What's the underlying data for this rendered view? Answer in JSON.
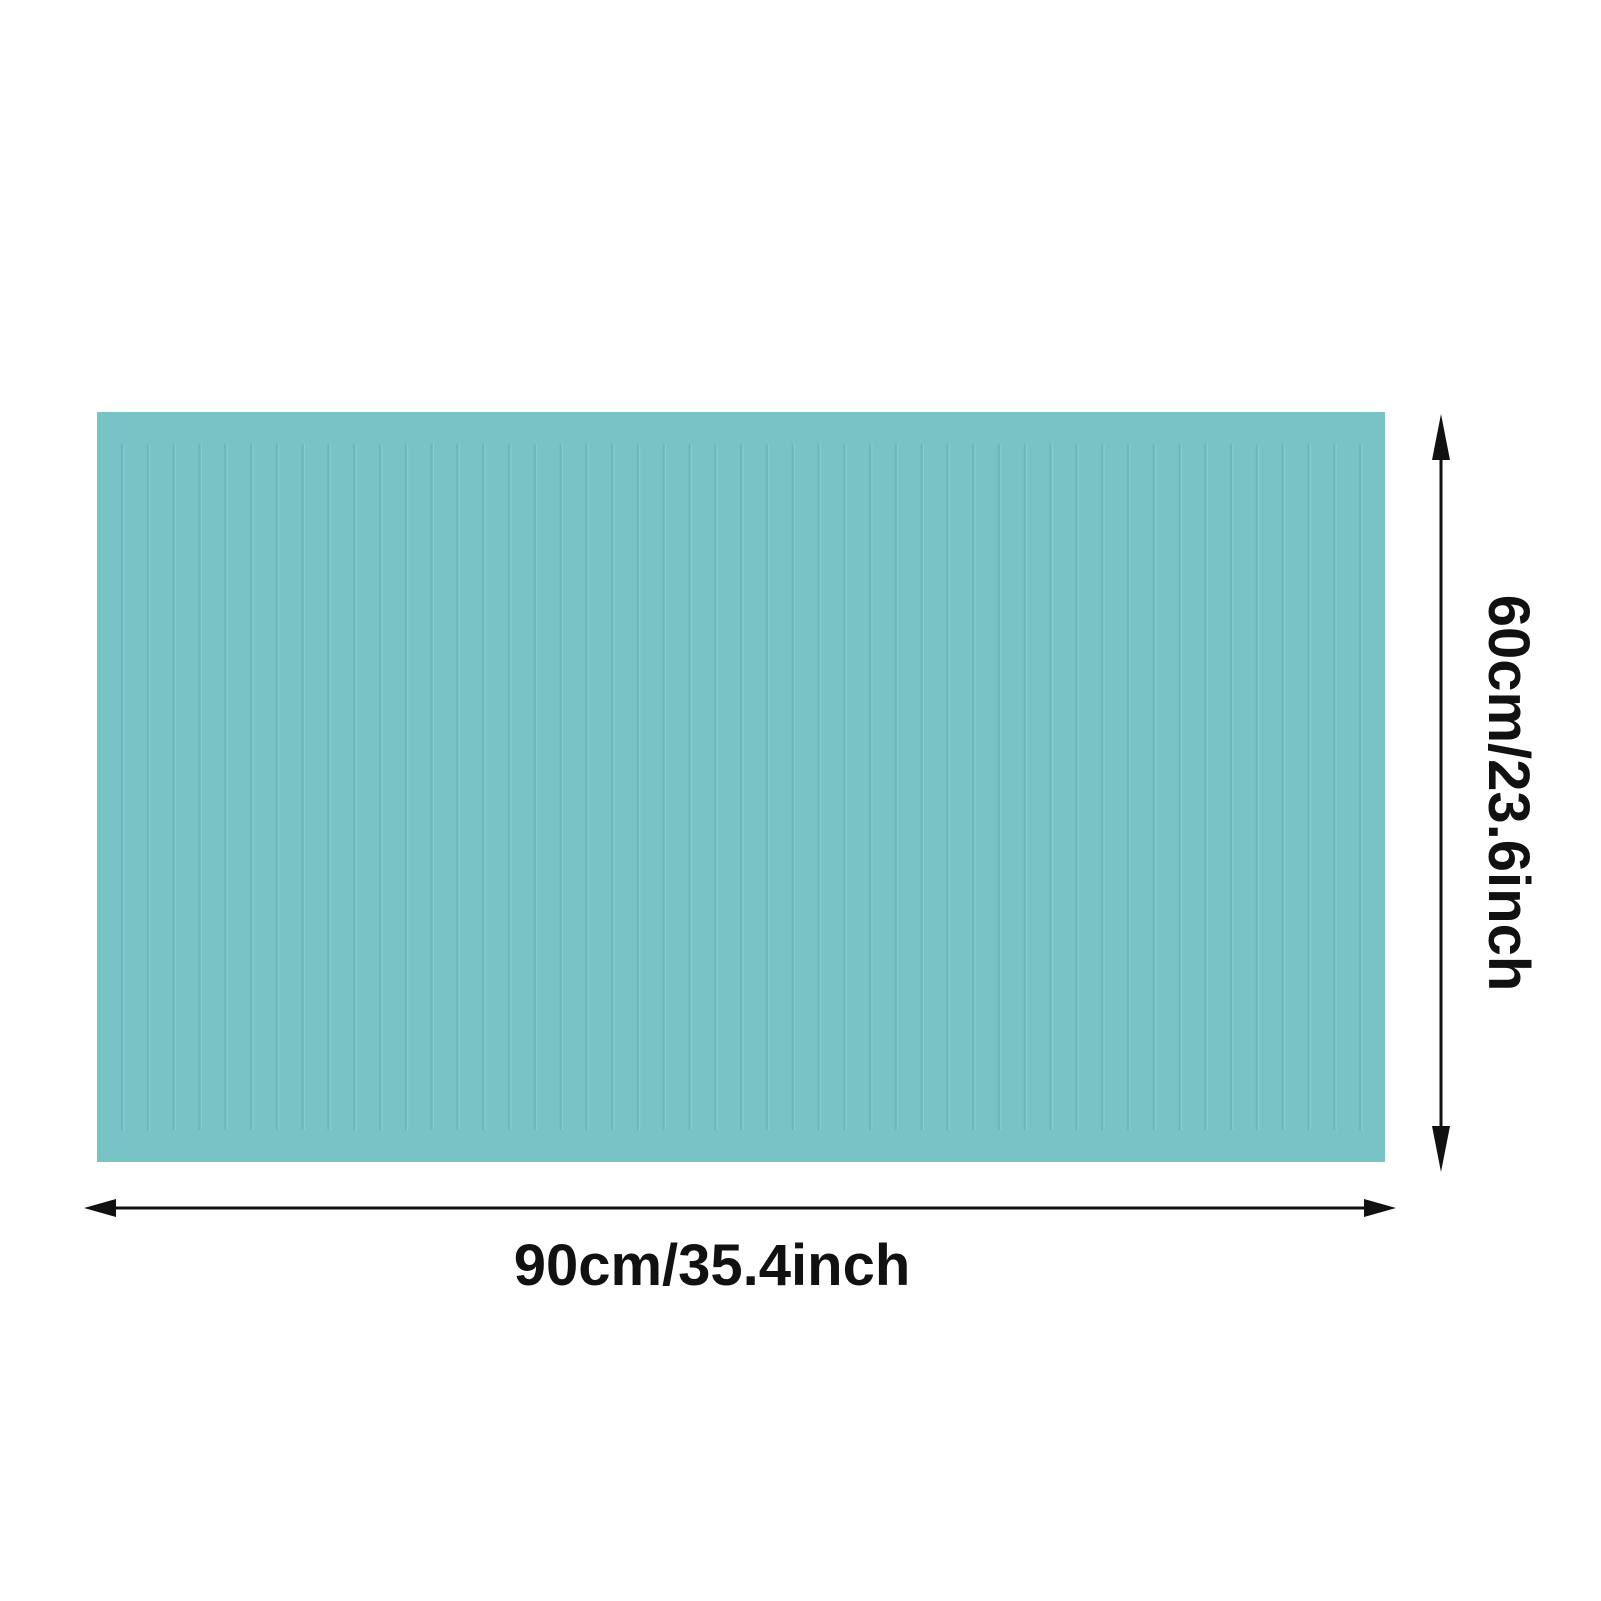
{
  "product": {
    "color": "#78c3c6",
    "rib_color": "#6cb7ba",
    "rib_highlight": "#86cfd2",
    "rib_count": 49
  },
  "dimensions": {
    "width_label": "90cm/35.4inch",
    "height_label": "60cm/23.6inch"
  },
  "arrow_color": "#111111"
}
